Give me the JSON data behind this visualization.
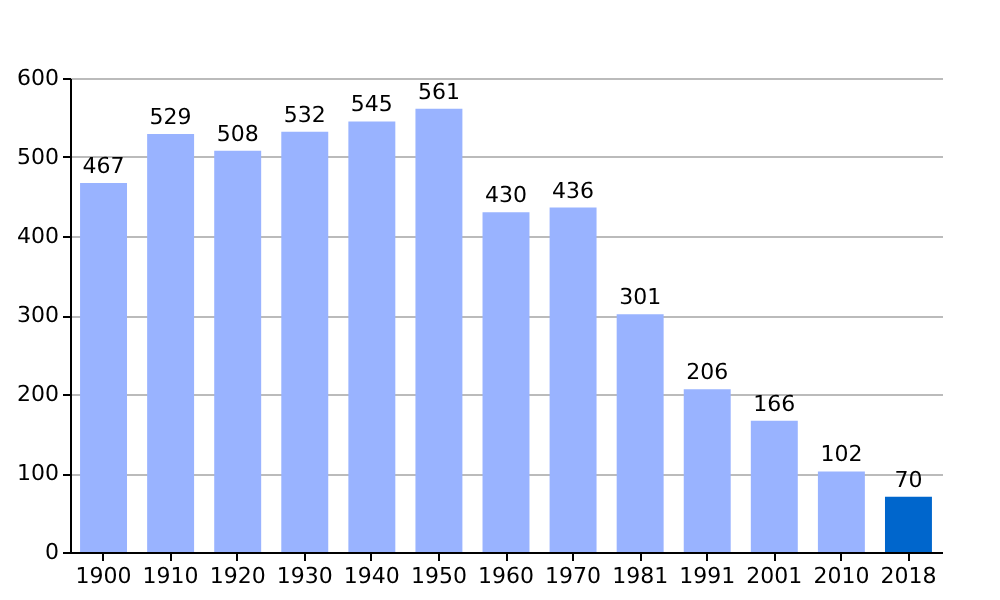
{
  "chart_data": {
    "type": "bar",
    "categories": [
      "1900",
      "1910",
      "1920",
      "1930",
      "1940",
      "1950",
      "1960",
      "1970",
      "1981",
      "1991",
      "2001",
      "2010",
      "2018"
    ],
    "values": [
      467,
      529,
      508,
      532,
      545,
      561,
      430,
      436,
      301,
      206,
      166,
      102,
      70
    ],
    "colors": [
      "#99b3ff",
      "#99b3ff",
      "#99b3ff",
      "#99b3ff",
      "#99b3ff",
      "#99b3ff",
      "#99b3ff",
      "#99b3ff",
      "#99b3ff",
      "#99b3ff",
      "#99b3ff",
      "#99b3ff",
      "#0066cc"
    ],
    "ylim": [
      0,
      600
    ],
    "yticks": [
      0,
      100,
      200,
      300,
      400,
      500,
      600
    ],
    "grid": "y",
    "data_labels": true
  }
}
